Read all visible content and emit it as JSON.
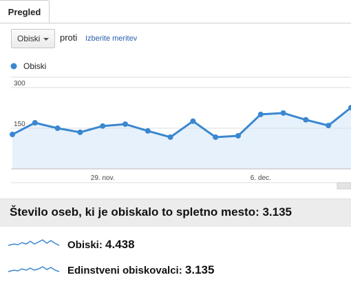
{
  "tab": "Pregled",
  "controls": {
    "metric": "Obiski",
    "versus": "proti",
    "select_metric": "Izberite meritev"
  },
  "chart": {
    "type": "line",
    "categories": [
      null,
      null,
      null,
      null,
      "29. nov.",
      null,
      null,
      null,
      null,
      null,
      null,
      "6. dec.",
      null,
      null,
      null,
      null
    ],
    "series": [
      {
        "name": "Obiski",
        "color": "#3a87d0",
        "values": [
          127,
          170,
          150,
          135,
          158,
          165,
          140,
          117,
          176,
          117,
          122,
          201,
          206,
          181,
          160,
          226
        ]
      }
    ],
    "ylim": [
      0,
      300
    ],
    "yticks": [
      150,
      300
    ],
    "grid": true
  },
  "summary": {
    "heading": "Število oseb, ki je obiskalo to spletno mesto: 3.135",
    "metrics": [
      {
        "label": "Obiski:",
        "value": "4.438"
      },
      {
        "label": "Edinstveni obiskovalci:",
        "value": "3.135"
      }
    ]
  }
}
